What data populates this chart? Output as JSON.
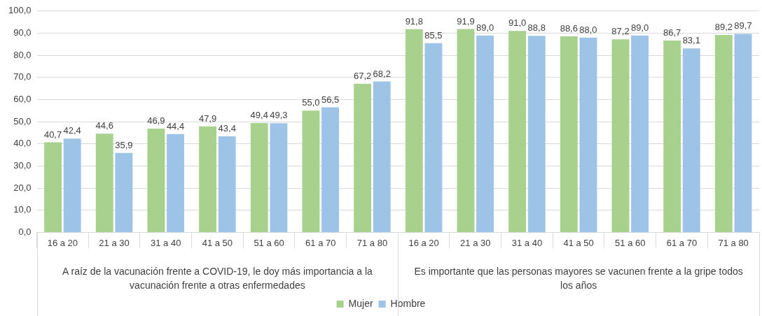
{
  "chart_data": {
    "type": "bar",
    "categories": [
      "16 a 20",
      "21 a 30",
      "31 a 40",
      "41 a 50",
      "51 a 60",
      "61 a 70",
      "71 a 80",
      "16 a 20",
      "21 a 30",
      "31 a 40",
      "41 a 50",
      "51 a 60",
      "61 a 70",
      "71 a 80"
    ],
    "series": [
      {
        "name": "Mujer",
        "color": "#a9d18e",
        "values": [
          40.7,
          44.6,
          46.9,
          47.9,
          49.4,
          55.0,
          67.2,
          91.8,
          91.9,
          91.0,
          88.6,
          87.2,
          86.7,
          89.2
        ],
        "value_labels": [
          "40,7",
          "44,6",
          "46,9",
          "47,9",
          "49,4",
          "55,0",
          "67,2",
          "91,8",
          "91,9",
          "91,0",
          "88,6",
          "87,2",
          "86,7",
          "89,2"
        ]
      },
      {
        "name": "Hombre",
        "color": "#9dc3e6",
        "values": [
          42.4,
          35.9,
          44.4,
          43.4,
          49.3,
          56.5,
          68.2,
          85.5,
          89.0,
          88.8,
          88.0,
          89.0,
          83.1,
          89.7
        ],
        "value_labels": [
          "42,4",
          "35,9",
          "44,4",
          "43,4",
          "49,3",
          "56,5",
          "68,2",
          "85,5",
          "89,0",
          "88,8",
          "88,0",
          "89,0",
          "83,1",
          "89,7"
        ]
      }
    ],
    "ylim": [
      0,
      100
    ],
    "yticks": [
      {
        "value": 0,
        "label": "0,0"
      },
      {
        "value": 10,
        "label": "10,0"
      },
      {
        "value": 20,
        "label": "20,0"
      },
      {
        "value": 30,
        "label": "30,0"
      },
      {
        "value": 40,
        "label": "40,0"
      },
      {
        "value": 50,
        "label": "50,0"
      },
      {
        "value": 60,
        "label": "60,0"
      },
      {
        "value": 70,
        "label": "70,0"
      },
      {
        "value": 80,
        "label": "80,0"
      },
      {
        "value": 90,
        "label": "90,0"
      },
      {
        "value": 100,
        "label": "100,0"
      }
    ],
    "grid": "y",
    "legend": "bottom",
    "annotations": [
      "A raíz de la vacunación frente a COVID-19, le doy más importancia a la vacunación frente a otras enfermedades",
      "Es importante que las personas mayores se vacunen frente a la gripe todos los años"
    ]
  }
}
